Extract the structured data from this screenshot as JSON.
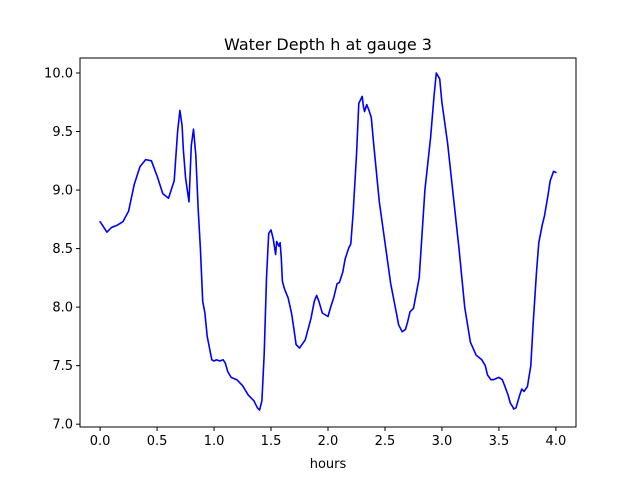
{
  "chart_data": {
    "type": "line",
    "title": "Water Depth h at gauge 3",
    "xlabel": "hours",
    "ylabel": "",
    "xlim": [
      -0.1764,
      4.1764
    ],
    "ylim": [
      6.976,
      10.128
    ],
    "grid": false,
    "legend": "none",
    "x_ticks": [
      0.0,
      0.5,
      1.0,
      1.5,
      2.0,
      2.5,
      3.0,
      3.5,
      4.0
    ],
    "x_tick_labels": [
      "0.0",
      "0.5",
      "1.0",
      "1.5",
      "2.0",
      "2.5",
      "3.0",
      "3.5",
      "4.0"
    ],
    "y_ticks": [
      7.0,
      7.5,
      8.0,
      8.5,
      9.0,
      9.5,
      10.0
    ],
    "y_tick_labels": [
      "7.0",
      "7.5",
      "8.0",
      "8.5",
      "9.0",
      "9.5",
      "10.0"
    ],
    "series": [
      {
        "color": "#0000ff",
        "x": [
          0.0,
          0.04,
          0.06,
          0.1,
          0.15,
          0.2,
          0.25,
          0.3,
          0.35,
          0.4,
          0.45,
          0.5,
          0.55,
          0.6,
          0.65,
          0.68,
          0.7,
          0.72,
          0.73,
          0.75,
          0.78,
          0.8,
          0.82,
          0.84,
          0.86,
          0.88,
          0.9,
          0.92,
          0.94,
          0.96,
          0.98,
          1.0,
          1.02,
          1.05,
          1.08,
          1.1,
          1.12,
          1.15,
          1.2,
          1.25,
          1.3,
          1.35,
          1.38,
          1.4,
          1.42,
          1.44,
          1.46,
          1.48,
          1.5,
          1.52,
          1.54,
          1.55,
          1.57,
          1.58,
          1.59,
          1.6,
          1.62,
          1.65,
          1.68,
          1.7,
          1.72,
          1.75,
          1.8,
          1.85,
          1.88,
          1.9,
          1.92,
          1.95,
          2.0,
          2.02,
          2.05,
          2.08,
          2.1,
          2.13,
          2.15,
          2.18,
          2.2,
          2.22,
          2.25,
          2.27,
          2.28,
          2.3,
          2.31,
          2.32,
          2.34,
          2.36,
          2.38,
          2.4,
          2.45,
          2.5,
          2.55,
          2.6,
          2.62,
          2.65,
          2.68,
          2.7,
          2.72,
          2.75,
          2.8,
          2.85,
          2.9,
          2.93,
          2.95,
          2.98,
          3.0,
          3.05,
          3.1,
          3.15,
          3.2,
          3.25,
          3.3,
          3.35,
          3.38,
          3.4,
          3.43,
          3.45,
          3.5,
          3.53,
          3.55,
          3.58,
          3.6,
          3.62,
          3.63,
          3.65,
          3.68,
          3.7,
          3.72,
          3.75,
          3.78,
          3.8,
          3.83,
          3.85,
          3.88,
          3.9,
          3.93,
          3.95,
          3.98,
          4.0
        ],
        "y": [
          8.73,
          8.67,
          8.64,
          8.68,
          8.7,
          8.73,
          8.82,
          9.05,
          9.2,
          9.26,
          9.25,
          9.12,
          8.97,
          8.93,
          9.08,
          9.5,
          9.68,
          9.55,
          9.35,
          9.1,
          8.9,
          9.38,
          9.52,
          9.3,
          8.85,
          8.5,
          8.05,
          7.95,
          7.75,
          7.65,
          7.55,
          7.54,
          7.55,
          7.54,
          7.55,
          7.52,
          7.45,
          7.4,
          7.38,
          7.33,
          7.25,
          7.2,
          7.14,
          7.12,
          7.2,
          7.6,
          8.25,
          8.63,
          8.66,
          8.58,
          8.45,
          8.56,
          8.52,
          8.55,
          8.42,
          8.22,
          8.15,
          8.08,
          7.95,
          7.82,
          7.68,
          7.65,
          7.72,
          7.9,
          8.05,
          8.1,
          8.05,
          7.95,
          7.92,
          7.99,
          8.08,
          8.2,
          8.21,
          8.3,
          8.41,
          8.5,
          8.54,
          8.8,
          9.3,
          9.74,
          9.76,
          9.8,
          9.72,
          9.67,
          9.73,
          9.68,
          9.62,
          9.4,
          8.9,
          8.55,
          8.2,
          7.95,
          7.85,
          7.79,
          7.81,
          7.88,
          7.96,
          7.99,
          8.25,
          9.0,
          9.45,
          9.8,
          10.0,
          9.95,
          9.75,
          9.4,
          8.95,
          8.5,
          8.0,
          7.7,
          7.59,
          7.55,
          7.5,
          7.42,
          7.38,
          7.38,
          7.4,
          7.38,
          7.33,
          7.25,
          7.18,
          7.15,
          7.13,
          7.14,
          7.24,
          7.3,
          7.28,
          7.32,
          7.5,
          7.85,
          8.3,
          8.55,
          8.7,
          8.78,
          8.95,
          9.08,
          9.16,
          9.15
        ]
      }
    ]
  }
}
